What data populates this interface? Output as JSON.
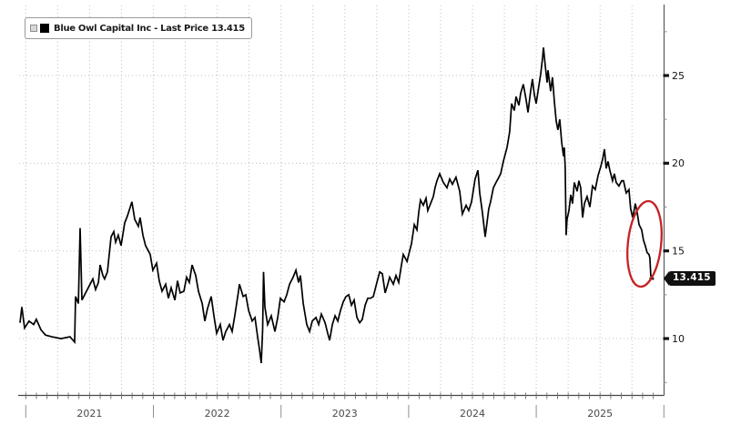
{
  "legend": {
    "label": "Blue Owl Capital Inc - Last Price 13.415",
    "series_swatch_color": "#000000",
    "checkbox_color": "#d8d8d8"
  },
  "price_badge": {
    "text": "13.415",
    "bg": "#111111",
    "fg": "#ffffff"
  },
  "annotation": {
    "type": "ellipse",
    "color": "#c52222",
    "center_t": 2025.848,
    "center_price": 15.4,
    "rx_years": 0.13,
    "ry_price": 2.45,
    "rotate_deg": 6
  },
  "chart_data": {
    "type": "line",
    "title": "Blue Owl Capital Inc - Last Price 13.415",
    "last_price": 13.415,
    "grid": "dotted",
    "legend_position": "top-left",
    "x_axis": {
      "range": [
        2020.955,
        2026.0
      ],
      "year_ticks": [
        {
          "year": 2021,
          "label": "2021"
        },
        {
          "year": 2022,
          "label": "2022"
        },
        {
          "year": 2023,
          "label": "2023"
        },
        {
          "year": 2024,
          "label": "2024"
        },
        {
          "year": 2025,
          "label": "2025"
        }
      ],
      "minor_ticks": "monthly",
      "grid_interval_years": 0.25
    },
    "y_axis": {
      "side": "right",
      "range": [
        6.8,
        29.3
      ],
      "ticks": [
        10,
        15,
        20,
        25
      ],
      "minor_ticks": [
        7.5,
        12.5,
        17.5,
        22.5,
        27.5
      ]
    },
    "series": [
      {
        "name": "Blue Owl Capital Inc",
        "color": "#000000",
        "points": [
          [
            2020.955,
            10.9
          ],
          [
            2020.969,
            11.8
          ],
          [
            2020.991,
            10.6
          ],
          [
            2021.026,
            11.0
          ],
          [
            2021.062,
            10.8
          ],
          [
            2021.083,
            11.1
          ],
          [
            2021.119,
            10.5
          ],
          [
            2021.155,
            10.2
          ],
          [
            2021.205,
            10.1
          ],
          [
            2021.276,
            10.0
          ],
          [
            2021.347,
            10.1
          ],
          [
            2021.383,
            9.8
          ],
          [
            2021.39,
            12.4
          ],
          [
            2021.412,
            12.0
          ],
          [
            2021.426,
            16.3
          ],
          [
            2021.44,
            12.2
          ],
          [
            2021.476,
            12.7
          ],
          [
            2021.497,
            13.0
          ],
          [
            2021.526,
            13.4
          ],
          [
            2021.547,
            12.8
          ],
          [
            2021.569,
            13.2
          ],
          [
            2021.583,
            14.2
          ],
          [
            2021.604,
            13.6
          ],
          [
            2021.618,
            13.4
          ],
          [
            2021.64,
            13.8
          ],
          [
            2021.668,
            15.8
          ],
          [
            2021.69,
            16.1
          ],
          [
            2021.704,
            15.5
          ],
          [
            2021.725,
            15.9
          ],
          [
            2021.747,
            15.3
          ],
          [
            2021.775,
            16.6
          ],
          [
            2021.797,
            17.0
          ],
          [
            2021.832,
            17.8
          ],
          [
            2021.854,
            16.8
          ],
          [
            2021.882,
            16.4
          ],
          [
            2021.896,
            16.9
          ],
          [
            2021.918,
            15.9
          ],
          [
            2021.939,
            15.3
          ],
          [
            2021.961,
            15.0
          ],
          [
            2021.975,
            14.8
          ],
          [
            2021.996,
            13.9
          ],
          [
            2022.025,
            14.3
          ],
          [
            2022.046,
            13.3
          ],
          [
            2022.068,
            12.7
          ],
          [
            2022.096,
            13.1
          ],
          [
            2022.118,
            12.3
          ],
          [
            2022.139,
            12.9
          ],
          [
            2022.168,
            12.2
          ],
          [
            2022.189,
            13.3
          ],
          [
            2022.21,
            12.6
          ],
          [
            2022.239,
            12.7
          ],
          [
            2022.26,
            13.5
          ],
          [
            2022.282,
            13.2
          ],
          [
            2022.303,
            14.2
          ],
          [
            2022.332,
            13.6
          ],
          [
            2022.353,
            12.7
          ],
          [
            2022.382,
            12.0
          ],
          [
            2022.403,
            11.0
          ],
          [
            2022.424,
            11.7
          ],
          [
            2022.453,
            12.4
          ],
          [
            2022.474,
            11.3
          ],
          [
            2022.496,
            10.3
          ],
          [
            2022.524,
            10.8
          ],
          [
            2022.546,
            9.9
          ],
          [
            2022.567,
            10.4
          ],
          [
            2022.596,
            10.8
          ],
          [
            2022.617,
            10.4
          ],
          [
            2022.638,
            11.3
          ],
          [
            2022.667,
            12.7
          ],
          [
            2022.674,
            13.1
          ],
          [
            2022.703,
            12.4
          ],
          [
            2022.724,
            12.5
          ],
          [
            2022.746,
            11.6
          ],
          [
            2022.774,
            11.0
          ],
          [
            2022.796,
            11.2
          ],
          [
            2022.817,
            10.1
          ],
          [
            2022.831,
            9.4
          ],
          [
            2022.845,
            8.6
          ],
          [
            2022.856,
            10.5
          ],
          [
            2022.863,
            13.8
          ],
          [
            2022.874,
            11.8
          ],
          [
            2022.895,
            10.8
          ],
          [
            2022.924,
            11.3
          ],
          [
            2022.952,
            10.4
          ],
          [
            2022.974,
            11.2
          ],
          [
            2022.995,
            12.3
          ],
          [
            2023.024,
            12.1
          ],
          [
            2023.045,
            12.5
          ],
          [
            2023.067,
            13.1
          ],
          [
            2023.095,
            13.5
          ],
          [
            2023.117,
            13.9
          ],
          [
            2023.138,
            13.2
          ],
          [
            2023.152,
            13.6
          ],
          [
            2023.174,
            12.0
          ],
          [
            2023.202,
            10.8
          ],
          [
            2023.224,
            10.4
          ],
          [
            2023.245,
            11.0
          ],
          [
            2023.274,
            11.2
          ],
          [
            2023.295,
            10.8
          ],
          [
            2023.316,
            11.4
          ],
          [
            2023.345,
            10.9
          ],
          [
            2023.366,
            10.3
          ],
          [
            2023.381,
            9.9
          ],
          [
            2023.402,
            10.8
          ],
          [
            2023.424,
            11.3
          ],
          [
            2023.445,
            11.0
          ],
          [
            2023.466,
            11.6
          ],
          [
            2023.488,
            12.1
          ],
          [
            2023.509,
            12.4
          ],
          [
            2023.531,
            12.5
          ],
          [
            2023.552,
            11.9
          ],
          [
            2023.573,
            12.2
          ],
          [
            2023.595,
            11.2
          ],
          [
            2023.616,
            10.9
          ],
          [
            2023.637,
            11.1
          ],
          [
            2023.659,
            11.9
          ],
          [
            2023.68,
            12.3
          ],
          [
            2023.702,
            12.3
          ],
          [
            2023.723,
            12.4
          ],
          [
            2023.751,
            13.2
          ],
          [
            2023.773,
            13.8
          ],
          [
            2023.794,
            13.7
          ],
          [
            2023.816,
            12.6
          ],
          [
            2023.837,
            13.1
          ],
          [
            2023.851,
            13.5
          ],
          [
            2023.88,
            13.1
          ],
          [
            2023.901,
            13.6
          ],
          [
            2023.922,
            13.2
          ],
          [
            2023.944,
            14.2
          ],
          [
            2023.958,
            14.8
          ],
          [
            2023.987,
            14.4
          ],
          [
            2024.008,
            15.0
          ],
          [
            2024.022,
            15.4
          ],
          [
            2024.044,
            16.5
          ],
          [
            2024.065,
            16.2
          ],
          [
            2024.079,
            17.2
          ],
          [
            2024.093,
            17.9
          ],
          [
            2024.115,
            17.6
          ],
          [
            2024.136,
            18.0
          ],
          [
            2024.15,
            17.3
          ],
          [
            2024.172,
            17.7
          ],
          [
            2024.193,
            18.1
          ],
          [
            2024.207,
            18.6
          ],
          [
            2024.222,
            19.0
          ],
          [
            2024.243,
            19.4
          ],
          [
            2024.272,
            18.9
          ],
          [
            2024.3,
            18.6
          ],
          [
            2024.322,
            19.1
          ],
          [
            2024.343,
            18.8
          ],
          [
            2024.371,
            19.2
          ],
          [
            2024.4,
            18.4
          ],
          [
            2024.421,
            17.1
          ],
          [
            2024.45,
            17.6
          ],
          [
            2024.471,
            17.3
          ],
          [
            2024.493,
            17.8
          ],
          [
            2024.521,
            19.1
          ],
          [
            2024.543,
            19.6
          ],
          [
            2024.557,
            18.3
          ],
          [
            2024.578,
            17.2
          ],
          [
            2024.6,
            15.8
          ],
          [
            2024.628,
            17.4
          ],
          [
            2024.642,
            17.8
          ],
          [
            2024.664,
            18.6
          ],
          [
            2024.685,
            18.9
          ],
          [
            2024.707,
            19.2
          ],
          [
            2024.721,
            19.4
          ],
          [
            2024.742,
            20.1
          ],
          [
            2024.771,
            20.9
          ],
          [
            2024.792,
            21.8
          ],
          [
            2024.807,
            23.4
          ],
          [
            2024.828,
            23.0
          ],
          [
            2024.842,
            23.8
          ],
          [
            2024.864,
            23.3
          ],
          [
            2024.878,
            24.0
          ],
          [
            2024.899,
            24.5
          ],
          [
            2024.921,
            23.6
          ],
          [
            2024.935,
            22.9
          ],
          [
            2024.956,
            24.1
          ],
          [
            2024.97,
            24.8
          ],
          [
            2024.985,
            23.9
          ],
          [
            2024.999,
            23.4
          ],
          [
            2025.02,
            24.4
          ],
          [
            2025.035,
            25.1
          ],
          [
            2025.049,
            26.0
          ],
          [
            2025.056,
            26.6
          ],
          [
            2025.07,
            25.6
          ],
          [
            2025.085,
            24.6
          ],
          [
            2025.092,
            25.3
          ],
          [
            2025.113,
            24.1
          ],
          [
            2025.127,
            24.9
          ],
          [
            2025.142,
            23.5
          ],
          [
            2025.156,
            22.4
          ],
          [
            2025.17,
            21.9
          ],
          [
            2025.184,
            22.5
          ],
          [
            2025.199,
            21.2
          ],
          [
            2025.213,
            20.4
          ],
          [
            2025.22,
            20.9
          ],
          [
            2025.227,
            19.7
          ],
          [
            2025.234,
            15.9
          ],
          [
            2025.241,
            16.8
          ],
          [
            2025.256,
            17.3
          ],
          [
            2025.27,
            18.2
          ],
          [
            2025.284,
            17.7
          ],
          [
            2025.298,
            18.9
          ],
          [
            2025.32,
            18.4
          ],
          [
            2025.334,
            19.0
          ],
          [
            2025.348,
            18.6
          ],
          [
            2025.363,
            16.9
          ],
          [
            2025.377,
            17.7
          ],
          [
            2025.398,
            18.1
          ],
          [
            2025.42,
            17.5
          ],
          [
            2025.441,
            18.7
          ],
          [
            2025.462,
            18.5
          ],
          [
            2025.484,
            19.3
          ],
          [
            2025.505,
            19.8
          ],
          [
            2025.519,
            20.2
          ],
          [
            2025.534,
            20.8
          ],
          [
            2025.548,
            19.7
          ],
          [
            2025.562,
            20.1
          ],
          [
            2025.576,
            19.6
          ],
          [
            2025.598,
            19.0
          ],
          [
            2025.612,
            19.4
          ],
          [
            2025.626,
            18.9
          ],
          [
            2025.648,
            18.7
          ],
          [
            2025.669,
            19.0
          ],
          [
            2025.683,
            19.0
          ],
          [
            2025.705,
            18.3
          ],
          [
            2025.726,
            18.5
          ],
          [
            2025.74,
            17.4
          ],
          [
            2025.755,
            16.9
          ],
          [
            2025.769,
            17.4
          ],
          [
            2025.776,
            17.7
          ],
          [
            2025.79,
            17.2
          ],
          [
            2025.805,
            16.5
          ],
          [
            2025.826,
            16.2
          ],
          [
            2025.84,
            15.6
          ],
          [
            2025.854,
            15.3
          ],
          [
            2025.869,
            14.9
          ],
          [
            2025.883,
            14.8
          ],
          [
            2025.89,
            14.6
          ],
          [
            2025.897,
            13.6
          ],
          [
            2025.904,
            13.415
          ]
        ]
      }
    ]
  }
}
